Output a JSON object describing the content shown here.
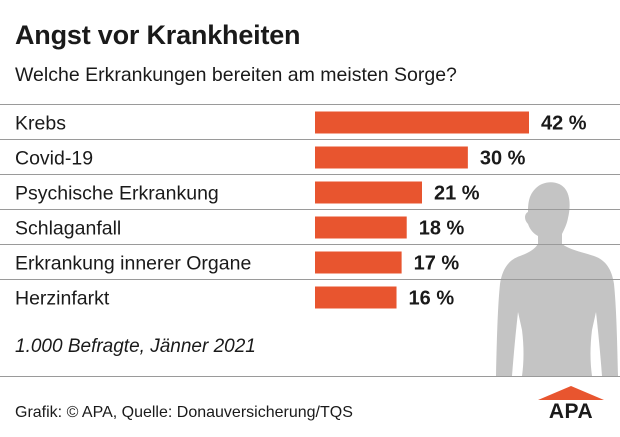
{
  "header": {
    "title": "Angst vor Krankheiten",
    "subtitle": "Welche Erkrankungen bereiten am meisten Sorge?"
  },
  "chart_data": {
    "type": "bar",
    "orientation": "horizontal",
    "title": "Angst vor Krankheiten",
    "subtitle": "Welche Erkrankungen bereiten am meisten Sorge?",
    "categories": [
      "Krebs",
      "Covid-19",
      "Psychische Erkrankung",
      "Schlaganfall",
      "Erkrankung innerer Organe",
      "Herzinfarkt"
    ],
    "values": [
      42,
      30,
      21,
      18,
      17,
      16
    ],
    "value_labels": [
      "42 %",
      "30 %",
      "21 %",
      "18 %",
      "17 %",
      "16 %"
    ],
    "unit": "%",
    "xlim": [
      0,
      42
    ],
    "grid": false,
    "bar_color": "#e8552f",
    "separator_color": "#9a9a9a"
  },
  "footer": {
    "note": "1.000 Befragte, Jänner 2021",
    "source": "Grafik: © APA, Quelle: Donauversicherung/TQS",
    "logo_text": "APA"
  },
  "colors": {
    "bar": "#e8552f",
    "figure": "#c4c4c4",
    "logo_accent": "#e8552f"
  }
}
